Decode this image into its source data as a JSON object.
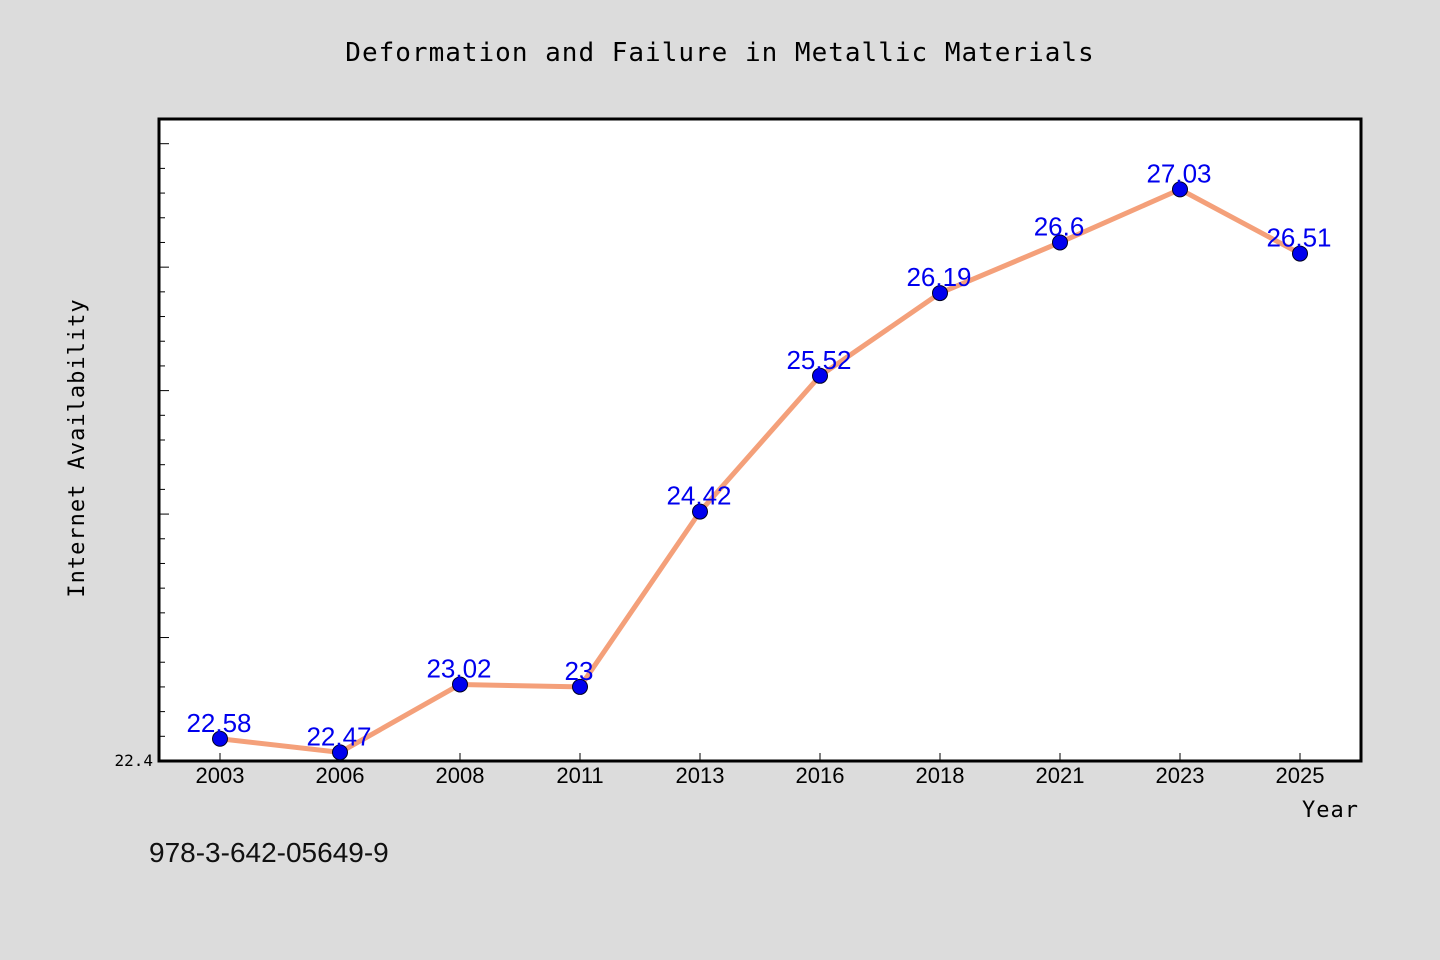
{
  "title": "Deformation and Failure in Metallic Materials",
  "footer": "978-3-642-05649-9",
  "colors": {
    "background": "#dcdcdc",
    "plot_background": "#ffffff",
    "line": "#f4a07a",
    "marker": "#0000ee",
    "data_label": "#0000ee"
  },
  "chart_data": {
    "type": "line",
    "title": "Deformation and Failure in Metallic Materials",
    "xlabel": "Year",
    "ylabel": "Internet Availability",
    "categories": [
      "2003",
      "2006",
      "2008",
      "2011",
      "2013",
      "2016",
      "2018",
      "2021",
      "2023",
      "2025"
    ],
    "series": [
      {
        "values": [
          22.58,
          22.47,
          23.02,
          23,
          24.42,
          25.52,
          26.19,
          26.6,
          27.03,
          26.51
        ]
      }
    ],
    "data_labels": [
      "22.58",
      "22.47",
      "23.02",
      "23",
      "24.42",
      "25.52",
      "26.19",
      "26.6",
      "27.03",
      "26.51"
    ],
    "y_tick_labels": [
      "22.4"
    ],
    "ylim": [
      22.4,
      27.6
    ],
    "grid": false,
    "legend": "none"
  }
}
